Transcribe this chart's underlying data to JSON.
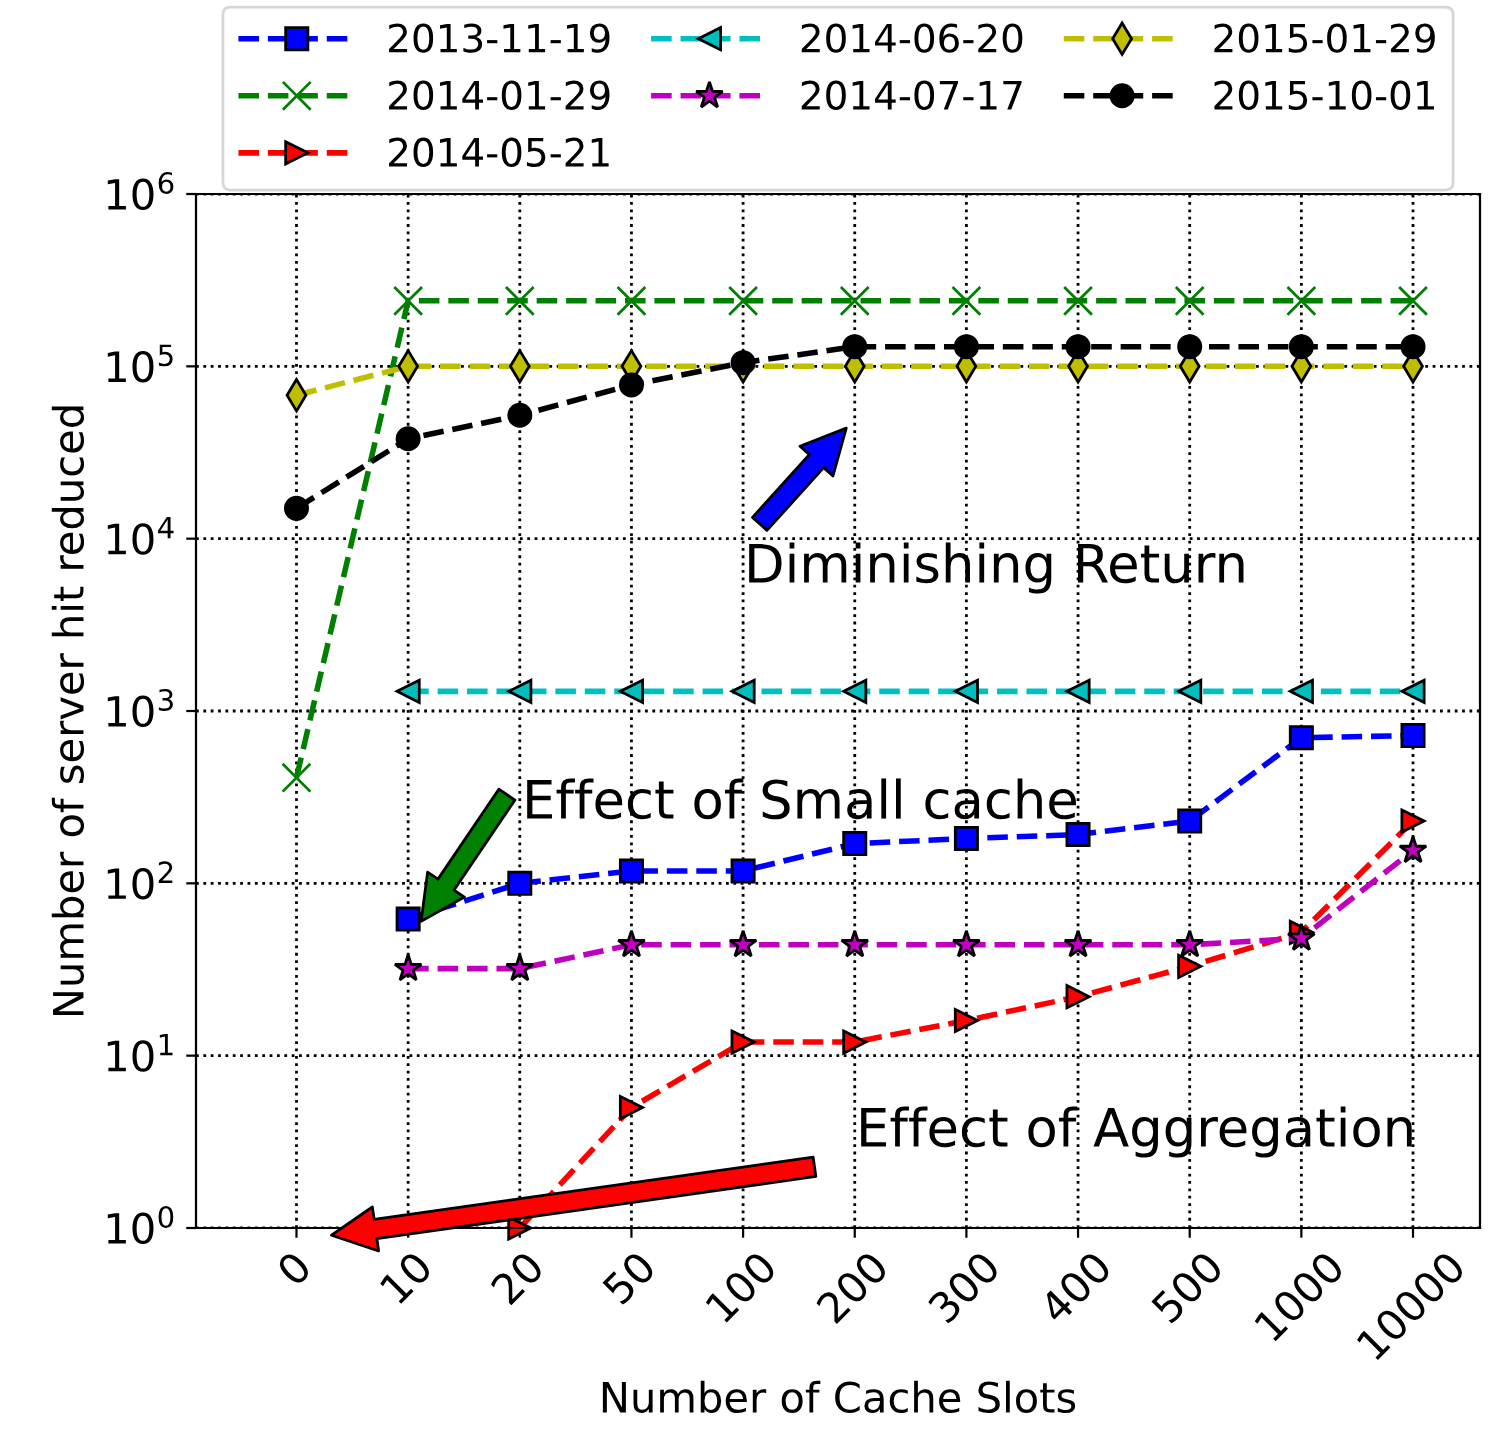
{
  "chart_data": {
    "type": "line",
    "xlabel": "Number of Cache Slots",
    "ylabel": "Number of server hit reduced",
    "categories": [
      "0",
      "10",
      "20",
      "50",
      "100",
      "200",
      "300",
      "400",
      "500",
      "1000",
      "10000"
    ],
    "log": "y",
    "ylim": [
      1,
      1000000
    ],
    "yticks": [
      {
        "value": 1,
        "label": "10$^{0}$"
      },
      {
        "value": 10,
        "label": "10$^{1}$"
      },
      {
        "value": 100,
        "label": "10$^{2}$"
      },
      {
        "value": 1000,
        "label": "10$^{3}$"
      },
      {
        "value": 10000,
        "label": "10$^{4}$"
      },
      {
        "value": 100000,
        "label": "10$^{5}$"
      },
      {
        "value": 1000000,
        "label": "10$^{6}$"
      }
    ],
    "grid": true,
    "legend": "top",
    "line_style": "dashed",
    "series": [
      {
        "name": "2013-11-19",
        "color": "#0000ff",
        "marker": "square",
        "values": [
          null,
          62,
          100,
          118,
          118,
          170,
          182,
          192,
          230,
          700,
          720
        ]
      },
      {
        "name": "2014-01-29",
        "color": "#008000",
        "marker": "cross",
        "values": [
          410,
          240000,
          240000,
          240000,
          240000,
          240000,
          240000,
          240000,
          240000,
          240000,
          240000
        ]
      },
      {
        "name": "2014-05-21",
        "color": "#ff0000",
        "marker": "triangle-right",
        "values": [
          null,
          null,
          1,
          5,
          12,
          12,
          16,
          22,
          33,
          52,
          230
        ]
      },
      {
        "name": "2014-06-20",
        "color": "#00bfbf",
        "marker": "triangle-left",
        "values": [
          null,
          1300,
          1300,
          1300,
          1300,
          1300,
          1300,
          1300,
          1300,
          1300,
          1300
        ]
      },
      {
        "name": "2014-07-17",
        "color": "#bf00bf",
        "marker": "star",
        "values": [
          null,
          32,
          32,
          44,
          44,
          44,
          44,
          44,
          44,
          48,
          155
        ]
      },
      {
        "name": "2015-01-29",
        "color": "#bfbf00",
        "marker": "diamond",
        "values": [
          68000,
          100000,
          100000,
          100000,
          100000,
          100000,
          100000,
          100000,
          100000,
          100000,
          100000
        ]
      },
      {
        "name": "2015-10-01",
        "color": "#000000",
        "marker": "circle",
        "values": [
          15000,
          38000,
          52000,
          78000,
          105000,
          130000,
          130000,
          130000,
          130000,
          130000,
          130000
        ]
      }
    ],
    "annotations": [
      "Diminishing Return",
      "Effect of Small cache",
      "Effect of Aggregation"
    ]
  }
}
